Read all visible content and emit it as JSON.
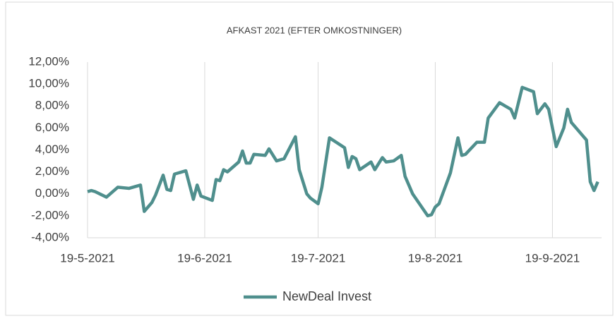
{
  "chart_data": {
    "type": "line",
    "title": "AFKAST 2021 (EFTER OMKOSTNINGER)",
    "x": [
      "2021-05-19",
      "2021-05-20",
      "2021-05-21",
      "2021-05-24",
      "2021-05-27",
      "2021-05-30",
      "2021-06-02",
      "2021-06-03",
      "2021-06-05",
      "2021-06-06",
      "2021-06-08",
      "2021-06-09",
      "2021-06-10",
      "2021-06-11",
      "2021-06-14",
      "2021-06-16",
      "2021-06-17",
      "2021-06-18",
      "2021-06-21",
      "2021-06-22",
      "2021-06-23",
      "2021-06-24",
      "2021-06-25",
      "2021-06-28",
      "2021-06-29",
      "2021-06-30",
      "2021-07-01",
      "2021-07-02",
      "2021-07-05",
      "2021-07-06",
      "2021-07-08",
      "2021-07-10",
      "2021-07-13",
      "2021-07-14",
      "2021-07-16",
      "2021-07-17",
      "2021-07-19",
      "2021-07-20",
      "2021-07-22",
      "2021-07-26",
      "2021-07-27",
      "2021-07-28",
      "2021-07-29",
      "2021-07-30",
      "2021-08-02",
      "2021-08-03",
      "2021-08-05",
      "2021-08-06",
      "2021-08-08",
      "2021-08-10",
      "2021-08-11",
      "2021-08-13",
      "2021-08-17",
      "2021-08-18",
      "2021-08-19",
      "2021-08-20",
      "2021-08-23",
      "2021-08-25",
      "2021-08-26",
      "2021-08-27",
      "2021-08-30",
      "2021-09-01",
      "2021-09-02",
      "2021-09-05",
      "2021-09-08",
      "2021-09-09",
      "2021-09-11",
      "2021-09-14",
      "2021-09-15",
      "2021-09-17",
      "2021-09-18",
      "2021-09-20",
      "2021-09-22",
      "2021-09-23",
      "2021-09-24",
      "2021-09-28",
      "2021-09-29",
      "2021-09-30",
      "2021-10-01"
    ],
    "series": [
      {
        "name": "NewDeal Invest",
        "color": "#4f8f8d",
        "values": [
          0.2,
          0.3,
          0.2,
          -0.3,
          0.6,
          0.5,
          0.8,
          -1.6,
          -0.8,
          -0.1,
          1.7,
          0.4,
          0.3,
          1.8,
          2.1,
          -0.5,
          0.8,
          -0.2,
          -0.6,
          1.3,
          1.2,
          2.2,
          2.0,
          2.9,
          3.9,
          2.8,
          2.8,
          3.6,
          3.5,
          4.1,
          3.0,
          3.2,
          5.2,
          2.2,
          0.0,
          -0.4,
          -0.9,
          0.6,
          5.1,
          4.2,
          2.4,
          3.4,
          3.2,
          2.2,
          2.9,
          2.2,
          3.3,
          2.9,
          3.0,
          3.5,
          1.6,
          0.0,
          -2.0,
          -1.9,
          -1.2,
          -0.9,
          1.9,
          5.1,
          3.5,
          3.6,
          4.7,
          4.7,
          6.9,
          8.3,
          7.7,
          6.9,
          9.7,
          9.3,
          7.3,
          8.2,
          7.7,
          4.3,
          6.0,
          7.7,
          6.5,
          4.9,
          1.1,
          0.3,
          1.1
        ]
      }
    ],
    "xlim": [
      "2021-05-19",
      "2021-10-02"
    ],
    "xticks": [
      {
        "value": "2021-05-19",
        "label": "19-5-2021"
      },
      {
        "value": "2021-06-19",
        "label": "19-6-2021"
      },
      {
        "value": "2021-07-19",
        "label": "19-7-2021"
      },
      {
        "value": "2021-08-19",
        "label": "19-8-2021"
      },
      {
        "value": "2021-09-19",
        "label": "19-9-2021"
      }
    ],
    "ylim": [
      -4,
      12
    ],
    "yticks": [
      {
        "value": -4,
        "label": "-4,00%"
      },
      {
        "value": -2,
        "label": "-2,00%"
      },
      {
        "value": 0,
        "label": "0,00%"
      },
      {
        "value": 2,
        "label": "2,00%"
      },
      {
        "value": 4,
        "label": "4,00%"
      },
      {
        "value": 6,
        "label": "6,00%"
      },
      {
        "value": 8,
        "label": "8,00%"
      },
      {
        "value": 10,
        "label": "10,00%"
      },
      {
        "value": 12,
        "label": "12,00%"
      }
    ],
    "grid": true,
    "legend": "bottom"
  }
}
